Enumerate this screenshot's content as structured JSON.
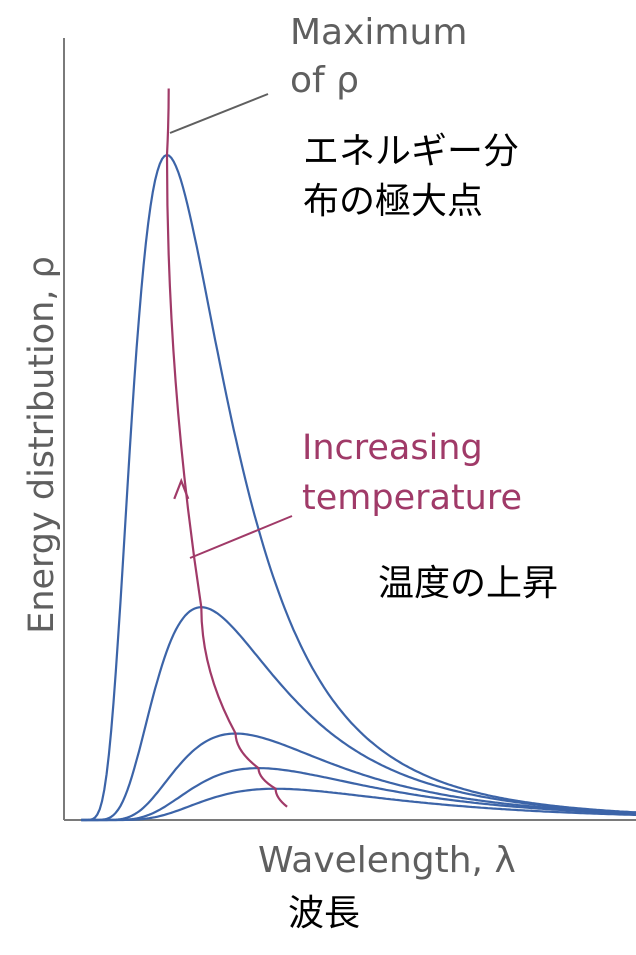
{
  "chart_data": {
    "type": "line",
    "xlabel": "Wavelength, λ",
    "ylabel": "Energy distribution, ρ",
    "x_ticks": [],
    "y_ticks": [],
    "grid": false,
    "series": [
      {
        "label_index": 0,
        "peak_x": 0.18,
        "peak_y": 1.0,
        "color": "#3c64a8"
      },
      {
        "label_index": 1,
        "peak_x": 0.24,
        "peak_y": 0.32,
        "color": "#3c64a8"
      },
      {
        "label_index": 2,
        "peak_x": 0.3,
        "peak_y": 0.13,
        "color": "#3c64a8"
      },
      {
        "label_index": 3,
        "peak_x": 0.34,
        "peak_y": 0.078,
        "color": "#3c64a8"
      },
      {
        "label_index": 4,
        "peak_x": 0.37,
        "peak_y": 0.047,
        "color": "#3c64a8"
      }
    ],
    "peak_locus": {
      "color": "#a03a68"
    },
    "annotations": {
      "maximum_line1": "Maximum",
      "maximum_line2": "of ρ",
      "increasing_line1": "Increasing",
      "increasing_line2": "temperature"
    }
  },
  "jp_labels": {
    "peak_line1": "エネルギー分",
    "peak_line2": "布の極大点",
    "temperature": "温度の上昇",
    "wavelength": "波長"
  },
  "colors": {
    "axis": "#7a7a7a",
    "curve": "#3c64a8",
    "locus": "#a03a68",
    "annotation_grey": "#5f5f5f"
  }
}
